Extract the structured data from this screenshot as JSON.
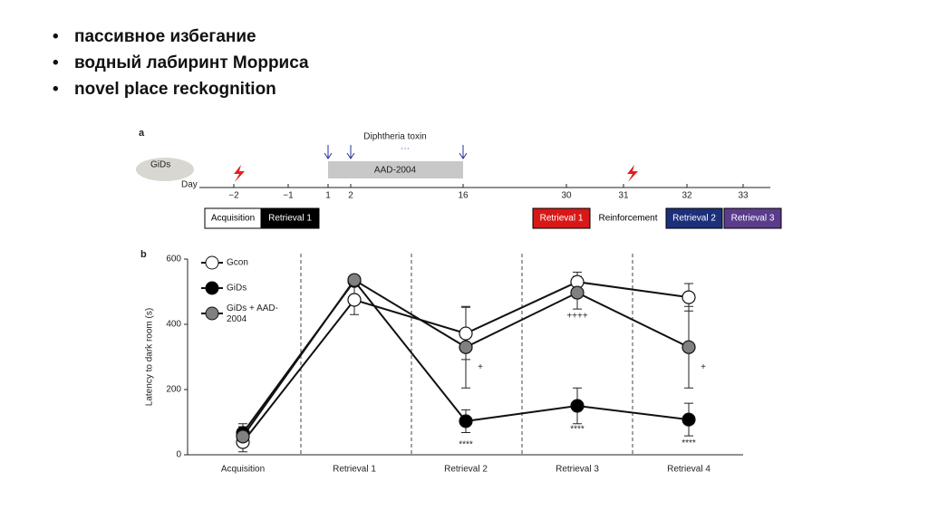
{
  "bullets": [
    "пассивное избегание",
    "водный лабиринт Морриса",
    "novel place reckognition"
  ],
  "panel_a": {
    "label": "a",
    "animal": "GiDs",
    "day_label": "Day",
    "days": [
      "−2",
      "−1",
      "1",
      "2",
      "16",
      "30",
      "31",
      "32",
      "33"
    ],
    "toxin": "Diphtheria toxin",
    "dots": "···",
    "drug": "AAD-2004",
    "phases": [
      "Acquisition",
      "Retrieval 1",
      "Retrieval 1",
      "Reinforcement",
      "Retrieval 2",
      "Retrieval 3"
    ]
  },
  "chart_data": {
    "type": "line",
    "label": "b",
    "ylabel": "Latency to dark room (s)",
    "categories": [
      "Acquisition",
      "Retrieval 1",
      "Retrieval 2",
      "Retrieval 3",
      "Retrieval 4"
    ],
    "ylim": [
      0,
      600
    ],
    "yticks": [
      0,
      200,
      400,
      600
    ],
    "series": [
      {
        "name": "Gcon",
        "color": "#ffffff",
        "values": [
          39,
          475,
          372,
          530,
          483
        ],
        "errors": [
          30,
          45,
          80,
          30,
          42
        ]
      },
      {
        "name": "GiDs",
        "color": "#000000",
        "values": [
          67,
          533,
          103,
          150,
          108
        ],
        "errors": [
          28,
          15,
          35,
          55,
          50
        ]
      },
      {
        "name": "GiDs + AAD-2004",
        "color": "#808080",
        "values": [
          56,
          536,
          330,
          497,
          330
        ],
        "errors": [
          30,
          15,
          125,
          50,
          125
        ]
      }
    ],
    "annotations": [
      {
        "series": 1,
        "category": 2,
        "text": "****"
      },
      {
        "series": 1,
        "category": 3,
        "text": "****"
      },
      {
        "series": 1,
        "category": 4,
        "text": "****"
      },
      {
        "series": 2,
        "category": 2,
        "text": "+"
      },
      {
        "series": 2,
        "category": 3,
        "text": "++++"
      },
      {
        "series": 2,
        "category": 4,
        "text": "+"
      }
    ]
  }
}
